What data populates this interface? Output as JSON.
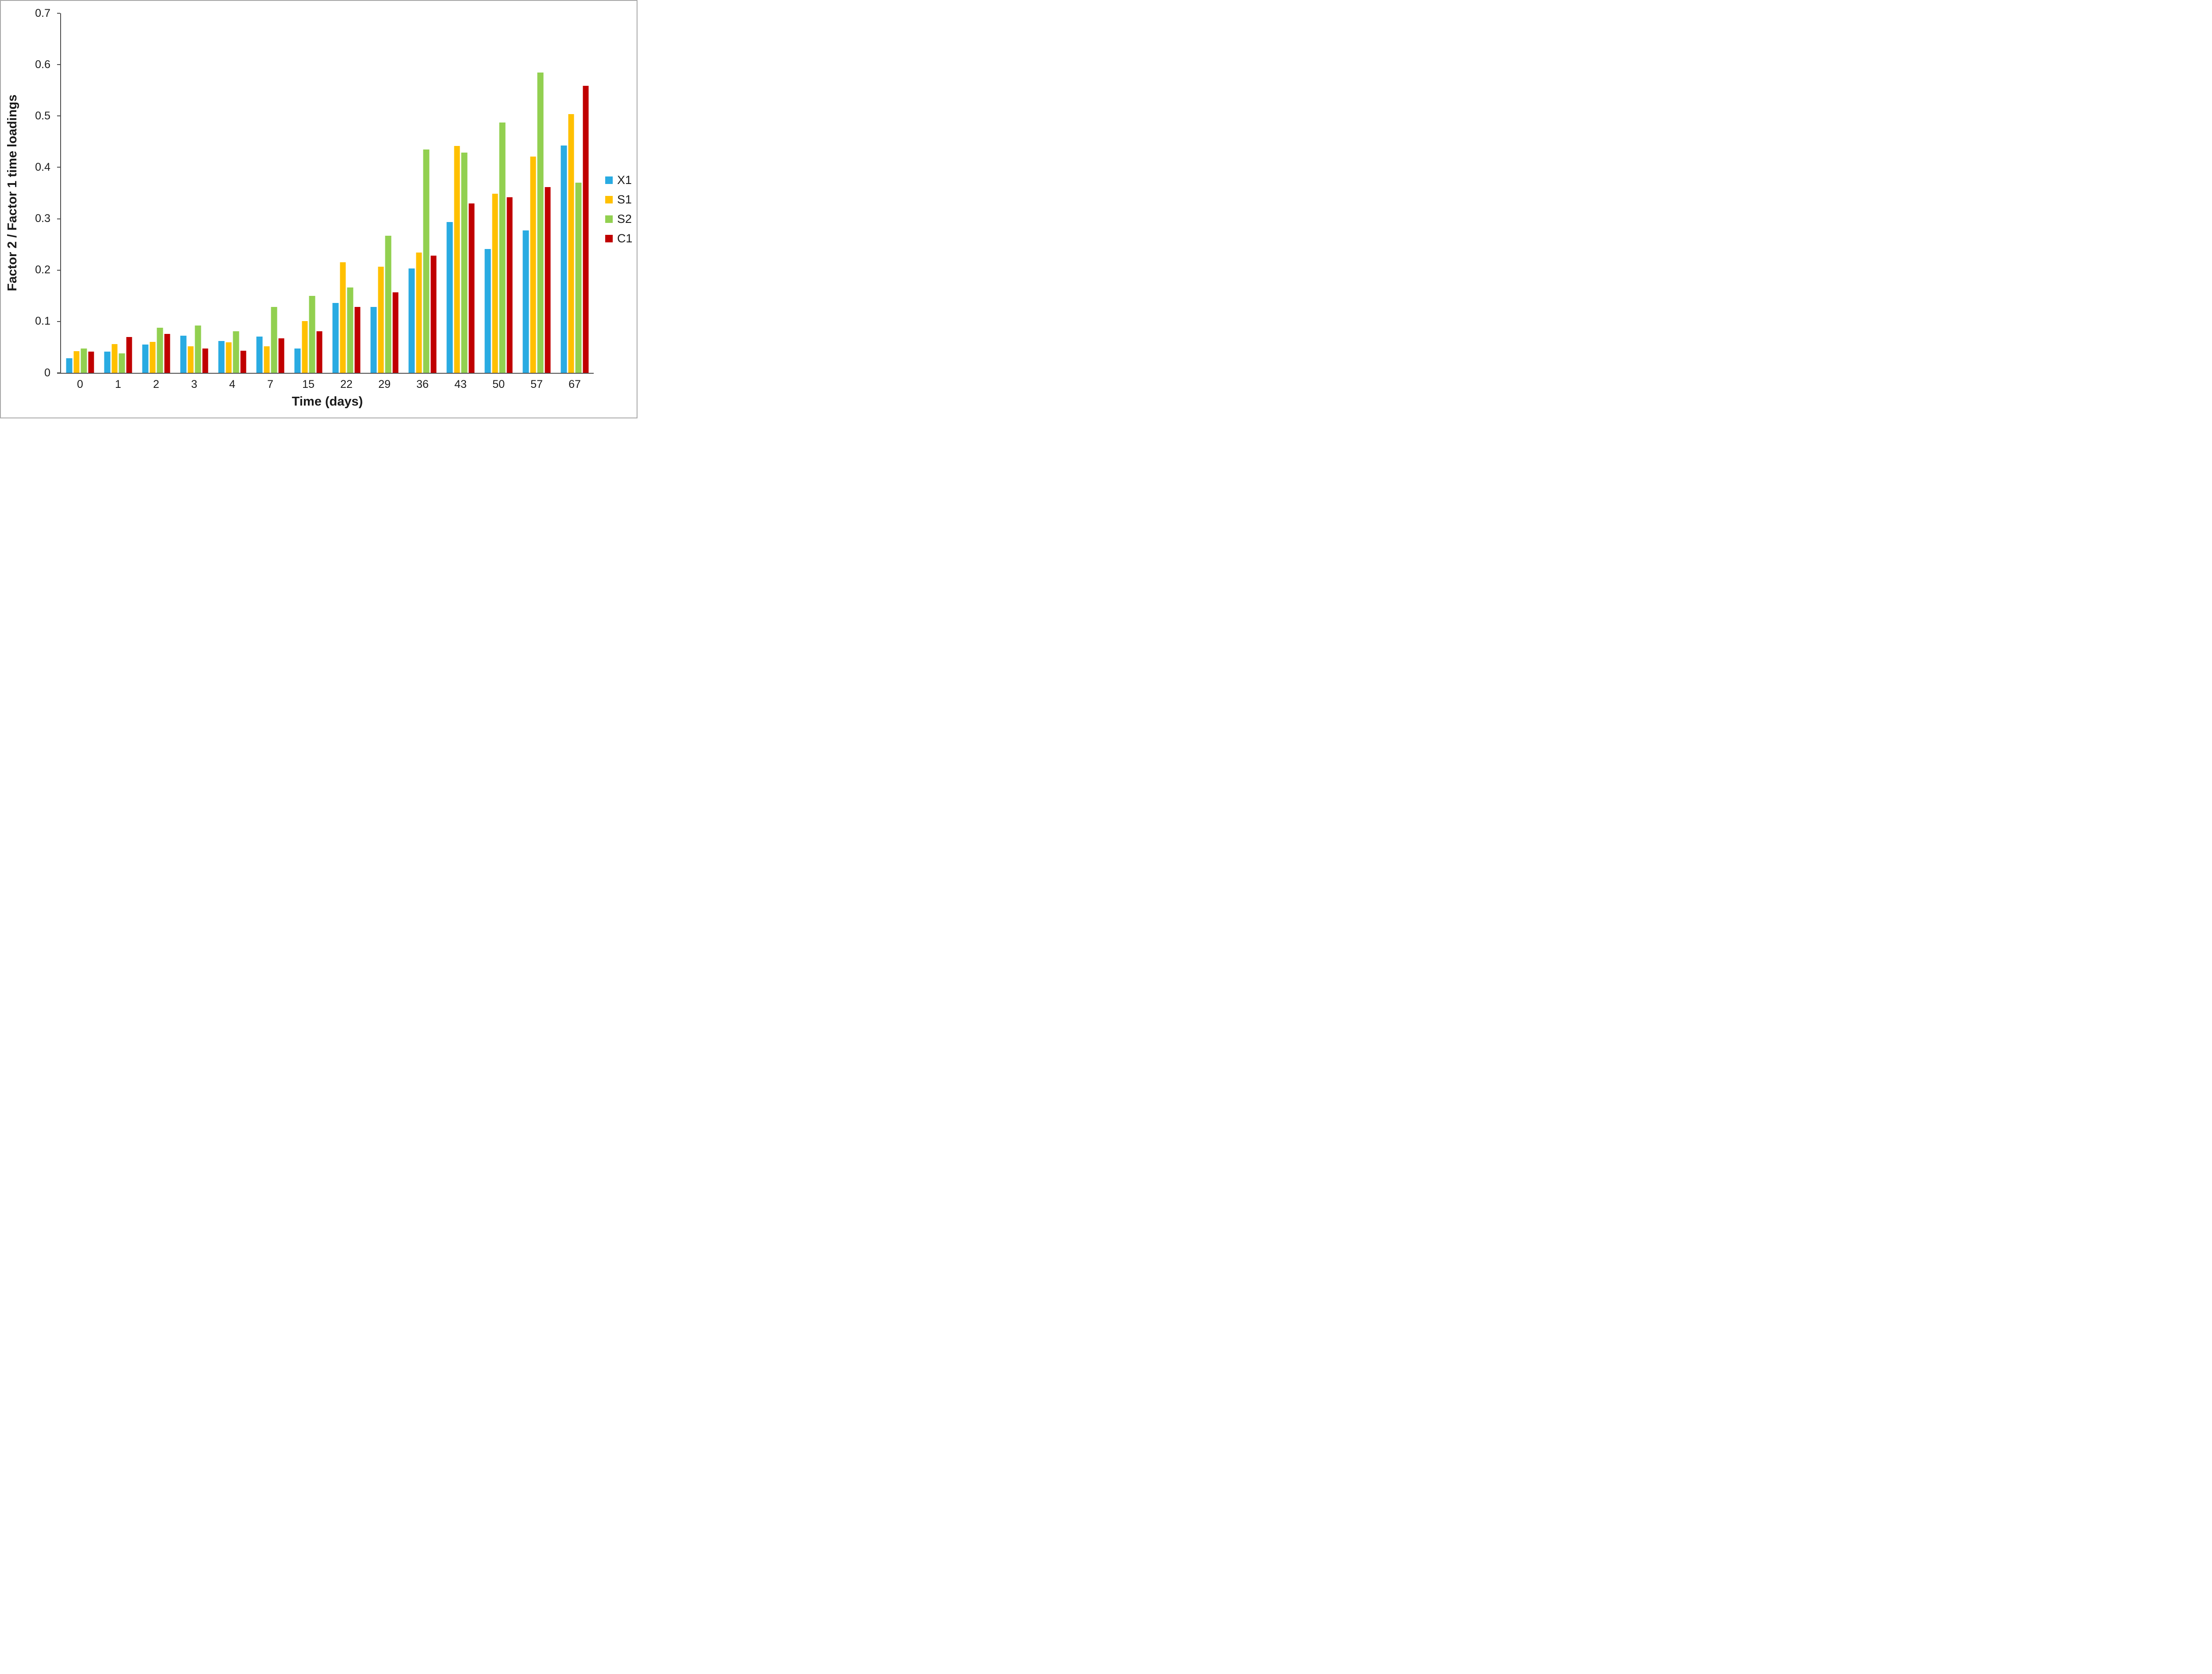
{
  "chart_data": {
    "type": "bar",
    "title": "",
    "xlabel": "Time (days)",
    "ylabel": "Factor 2 / Factor 1 time loadings",
    "categories": [
      "0",
      "1",
      "2",
      "3",
      "4",
      "7",
      "15",
      "22",
      "29",
      "36",
      "43",
      "50",
      "57",
      "67"
    ],
    "series": [
      {
        "name": "X1",
        "color": "#29ABE2",
        "values": [
          0.028,
          0.041,
          0.055,
          0.072,
          0.062,
          0.071,
          0.047,
          0.136,
          0.128,
          0.203,
          0.294,
          0.241,
          0.277,
          0.443
        ]
      },
      {
        "name": "S1",
        "color": "#FFC000",
        "values": [
          0.042,
          0.056,
          0.06,
          0.052,
          0.059,
          0.052,
          0.101,
          0.215,
          0.207,
          0.234,
          0.442,
          0.349,
          0.421,
          0.504
        ]
      },
      {
        "name": "S2",
        "color": "#92D050",
        "values": [
          0.047,
          0.038,
          0.088,
          0.092,
          0.081,
          0.128,
          0.15,
          0.166,
          0.267,
          0.435,
          0.429,
          0.487,
          0.585,
          0.37
        ]
      },
      {
        "name": "C1",
        "color": "#C00000",
        "values": [
          0.041,
          0.07,
          0.076,
          0.047,
          0.043,
          0.067,
          0.081,
          0.128,
          0.157,
          0.228,
          0.33,
          0.342,
          0.362,
          0.559
        ]
      }
    ],
    "ylim": [
      0,
      0.7
    ],
    "yticks": [
      "0",
      "0.1",
      "0.2",
      "0.3",
      "0.4",
      "0.5",
      "0.6",
      "0.7"
    ],
    "grid": false,
    "legend_position": "right",
    "axis_color": "#4d4d4d",
    "text_color": "#1a1a1a"
  }
}
